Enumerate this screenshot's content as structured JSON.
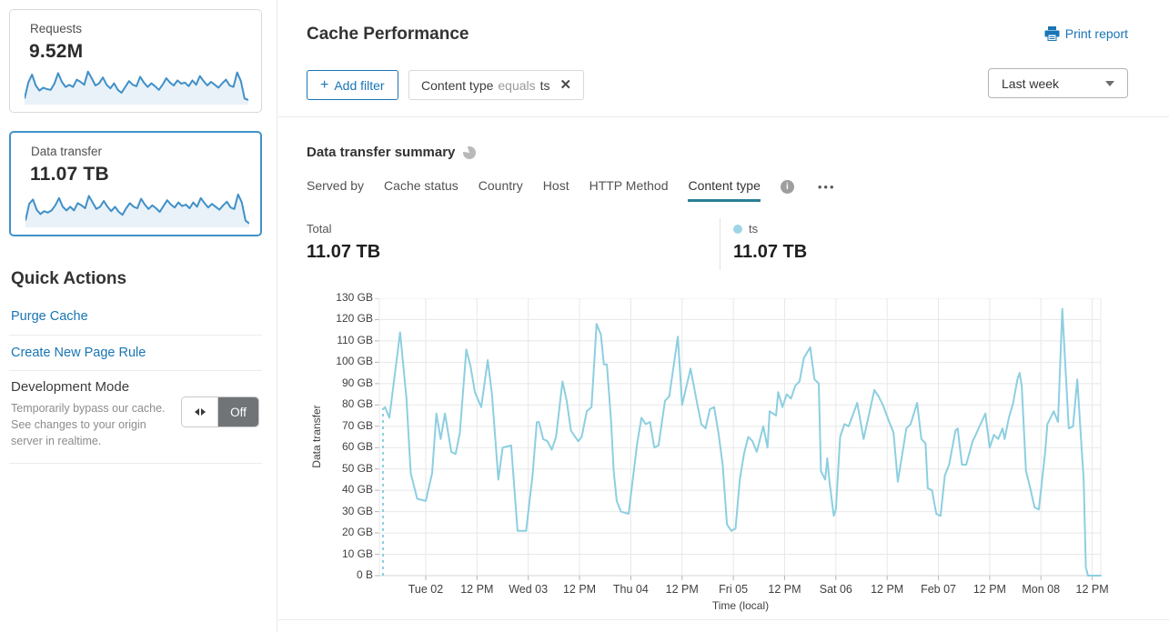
{
  "colors": {
    "link_blue": "#1975b5",
    "card_selected_border": "#4192c9",
    "sparkline_stroke": "#4090c8",
    "sparkline_fill": "#e9f2f9",
    "chart_line": "#8ccfe0",
    "tab_underline": "#2a7e95",
    "legend_dot": "#9ed6e6",
    "grid": "#e8e8e8",
    "toggle_off_bg": "#717477"
  },
  "sidebar": {
    "cards": [
      {
        "label": "Requests",
        "value": "9.52M",
        "selected": false,
        "trend": [
          14,
          58,
          80,
          50,
          36,
          44,
          40,
          38,
          55,
          84,
          60,
          46,
          52,
          46,
          66,
          60,
          52,
          88,
          70,
          50,
          56,
          72,
          52,
          42,
          56,
          38,
          30,
          46,
          62,
          52,
          48,
          74,
          58,
          46,
          56,
          48,
          38,
          52,
          70,
          58,
          50,
          64,
          55,
          58,
          48,
          64,
          52,
          76,
          62,
          50,
          60,
          52,
          44,
          56,
          66,
          50,
          46,
          86,
          62,
          14,
          10
        ]
      },
      {
        "label": "Data transfer",
        "value": "11.07 TB",
        "selected": true,
        "trend": [
          16,
          62,
          74,
          46,
          34,
          42,
          38,
          44,
          58,
          78,
          54,
          44,
          54,
          44,
          64,
          58,
          50,
          84,
          66,
          48,
          54,
          70,
          54,
          42,
          54,
          40,
          32,
          50,
          64,
          54,
          50,
          76,
          60,
          48,
          58,
          50,
          40,
          56,
          72,
          60,
          52,
          66,
          56,
          60,
          50,
          66,
          54,
          78,
          64,
          52,
          62,
          54,
          46,
          58,
          68,
          52,
          48,
          88,
          66,
          16,
          8
        ]
      }
    ],
    "quick_actions": {
      "title": "Quick Actions",
      "links": [
        {
          "label": "Purge Cache"
        },
        {
          "label": "Create New Page Rule"
        }
      ],
      "dev_mode": {
        "title": "Development Mode",
        "description": "Temporarily bypass our cache. See changes to your origin server in realtime.",
        "toggle_state": "Off"
      }
    }
  },
  "header": {
    "title": "Cache Performance",
    "print_label": "Print report",
    "add_filter": {
      "icon": "+",
      "label": "Add filter"
    },
    "filter_chip": {
      "field": "Content type",
      "operator": "equals",
      "value": "ts",
      "close": "✕"
    },
    "time_range": {
      "selected": "Last week"
    }
  },
  "summary": {
    "title": "Data transfer summary",
    "tabs": [
      {
        "label": "Served by",
        "active": false
      },
      {
        "label": "Cache status",
        "active": false
      },
      {
        "label": "Country",
        "active": false
      },
      {
        "label": "Host",
        "active": false
      },
      {
        "label": "HTTP Method",
        "active": false
      },
      {
        "label": "Content type",
        "active": true,
        "has_info": true
      }
    ],
    "more_label": "•••",
    "info_glyph": "i",
    "total_label": "Total",
    "total_value": "11.07 TB",
    "legend": {
      "series": "ts",
      "value": "11.07 TB"
    }
  },
  "chart_data": {
    "type": "line",
    "title": "Data transfer summary — ts",
    "xlabel": "Time (local)",
    "ylabel": "Data transfer",
    "unit": "GB",
    "ylim": [
      0,
      130
    ],
    "x_range_hours": [
      0,
      168
    ],
    "grid": true,
    "start_dashed": true,
    "y_ticks": [
      "0 B",
      "10 GB",
      "20 GB",
      "30 GB",
      "40 GB",
      "50 GB",
      "60 GB",
      "70 GB",
      "80 GB",
      "90 GB",
      "100 GB",
      "110 GB",
      "120 GB",
      "130 GB"
    ],
    "x_ticks": [
      {
        "hour": 10,
        "label": "Tue 02"
      },
      {
        "hour": 22,
        "label": "12 PM"
      },
      {
        "hour": 34,
        "label": "Wed 03"
      },
      {
        "hour": 46,
        "label": "12 PM"
      },
      {
        "hour": 58,
        "label": "Thu 04"
      },
      {
        "hour": 70,
        "label": "12 PM"
      },
      {
        "hour": 82,
        "label": "Fri 05"
      },
      {
        "hour": 94,
        "label": "12 PM"
      },
      {
        "hour": 106,
        "label": "Sat 06"
      },
      {
        "hour": 118,
        "label": "12 PM"
      },
      {
        "hour": 130,
        "label": "Feb 07"
      },
      {
        "hour": 142,
        "label": "12 PM"
      },
      {
        "hour": 154,
        "label": "Mon 08"
      },
      {
        "hour": 166,
        "label": "12 PM"
      }
    ],
    "series": [
      {
        "name": "ts",
        "color": "#8ccfe0",
        "points": [
          [
            0,
            78
          ],
          [
            0.5,
            79
          ],
          [
            1.5,
            74
          ],
          [
            4,
            114
          ],
          [
            5.5,
            83
          ],
          [
            6.5,
            48
          ],
          [
            8,
            36
          ],
          [
            10,
            35
          ],
          [
            11.5,
            48
          ],
          [
            12.5,
            76
          ],
          [
            13.5,
            64
          ],
          [
            14.5,
            76
          ],
          [
            16,
            58
          ],
          [
            17,
            57
          ],
          [
            18,
            67
          ],
          [
            19.5,
            106
          ],
          [
            20.5,
            98
          ],
          [
            21.5,
            86
          ],
          [
            23,
            79
          ],
          [
            24.5,
            101
          ],
          [
            25.5,
            85
          ],
          [
            27,
            45
          ],
          [
            28,
            60
          ],
          [
            30,
            61
          ],
          [
            31.5,
            21
          ],
          [
            33.5,
            21
          ],
          [
            35,
            47
          ],
          [
            36,
            72
          ],
          [
            36.5,
            72
          ],
          [
            37.5,
            64
          ],
          [
            38.5,
            63
          ],
          [
            39.5,
            59
          ],
          [
            40.5,
            65
          ],
          [
            42,
            91
          ],
          [
            43,
            82
          ],
          [
            44,
            68
          ],
          [
            45,
            65
          ],
          [
            45.7,
            63
          ],
          [
            46.5,
            65
          ],
          [
            47.7,
            77
          ],
          [
            48.8,
            79
          ],
          [
            50,
            118
          ],
          [
            51,
            113
          ],
          [
            51.7,
            99
          ],
          [
            52.4,
            99
          ],
          [
            53.4,
            72
          ],
          [
            54,
            49
          ],
          [
            54.7,
            35
          ],
          [
            55.7,
            30
          ],
          [
            57.5,
            29
          ],
          [
            59.5,
            62
          ],
          [
            60.5,
            74
          ],
          [
            61.5,
            71
          ],
          [
            62.5,
            72
          ],
          [
            63.5,
            60
          ],
          [
            64.5,
            61
          ],
          [
            66,
            82
          ],
          [
            67,
            84
          ],
          [
            69,
            112
          ],
          [
            70,
            80
          ],
          [
            72,
            97
          ],
          [
            73.5,
            81
          ],
          [
            74.5,
            71
          ],
          [
            75.5,
            69
          ],
          [
            76.5,
            78
          ],
          [
            77.5,
            79
          ],
          [
            78.5,
            67
          ],
          [
            79.5,
            52
          ],
          [
            80.5,
            24
          ],
          [
            81.5,
            21
          ],
          [
            82.5,
            22
          ],
          [
            83.5,
            45
          ],
          [
            84.5,
            57
          ],
          [
            85.5,
            65
          ],
          [
            86.5,
            63
          ],
          [
            87.5,
            58
          ],
          [
            89,
            70
          ],
          [
            90,
            60
          ],
          [
            90.5,
            77
          ],
          [
            92,
            75
          ],
          [
            92.5,
            86
          ],
          [
            93.5,
            79
          ],
          [
            94.5,
            85
          ],
          [
            95.5,
            83
          ],
          [
            96.5,
            89
          ],
          [
            97.5,
            91
          ],
          [
            98.5,
            102
          ],
          [
            100,
            107
          ],
          [
            101,
            92
          ],
          [
            102,
            90
          ],
          [
            102.5,
            49
          ],
          [
            103.5,
            45
          ],
          [
            104,
            55
          ],
          [
            104.5,
            44
          ],
          [
            105.5,
            28
          ],
          [
            106,
            31
          ],
          [
            107,
            65
          ],
          [
            108,
            71
          ],
          [
            109,
            70
          ],
          [
            111,
            81
          ],
          [
            112.5,
            64
          ],
          [
            115,
            87
          ],
          [
            116,
            84
          ],
          [
            117,
            80
          ],
          [
            118.5,
            72
          ],
          [
            119.5,
            67
          ],
          [
            120.5,
            44
          ],
          [
            122.5,
            69
          ],
          [
            123.5,
            71
          ],
          [
            125,
            81
          ],
          [
            126,
            64
          ],
          [
            127,
            62
          ],
          [
            127.5,
            41
          ],
          [
            128.5,
            40
          ],
          [
            129.5,
            29
          ],
          [
            130.5,
            28
          ],
          [
            131.5,
            47
          ],
          [
            132.5,
            52
          ],
          [
            134,
            68
          ],
          [
            134.5,
            69
          ],
          [
            135.5,
            52
          ],
          [
            136.5,
            52
          ],
          [
            138,
            63
          ],
          [
            138.5,
            65
          ],
          [
            141,
            76
          ],
          [
            142,
            60
          ],
          [
            143,
            66
          ],
          [
            144,
            64
          ],
          [
            145,
            69
          ],
          [
            145.5,
            64
          ],
          [
            146.5,
            74
          ],
          [
            147.5,
            81
          ],
          [
            148.5,
            92
          ],
          [
            149,
            95
          ],
          [
            149.5,
            89
          ],
          [
            150.5,
            49
          ],
          [
            151.5,
            41
          ],
          [
            152.5,
            32
          ],
          [
            153.5,
            31
          ],
          [
            155,
            58
          ],
          [
            155.5,
            71
          ],
          [
            157,
            77
          ],
          [
            158,
            72
          ],
          [
            159,
            125
          ],
          [
            160.5,
            69
          ],
          [
            161.5,
            70
          ],
          [
            162.5,
            92
          ],
          [
            163.5,
            60
          ],
          [
            164,
            45
          ],
          [
            164.5,
            4
          ],
          [
            165,
            0
          ],
          [
            168,
            0
          ]
        ]
      }
    ]
  }
}
